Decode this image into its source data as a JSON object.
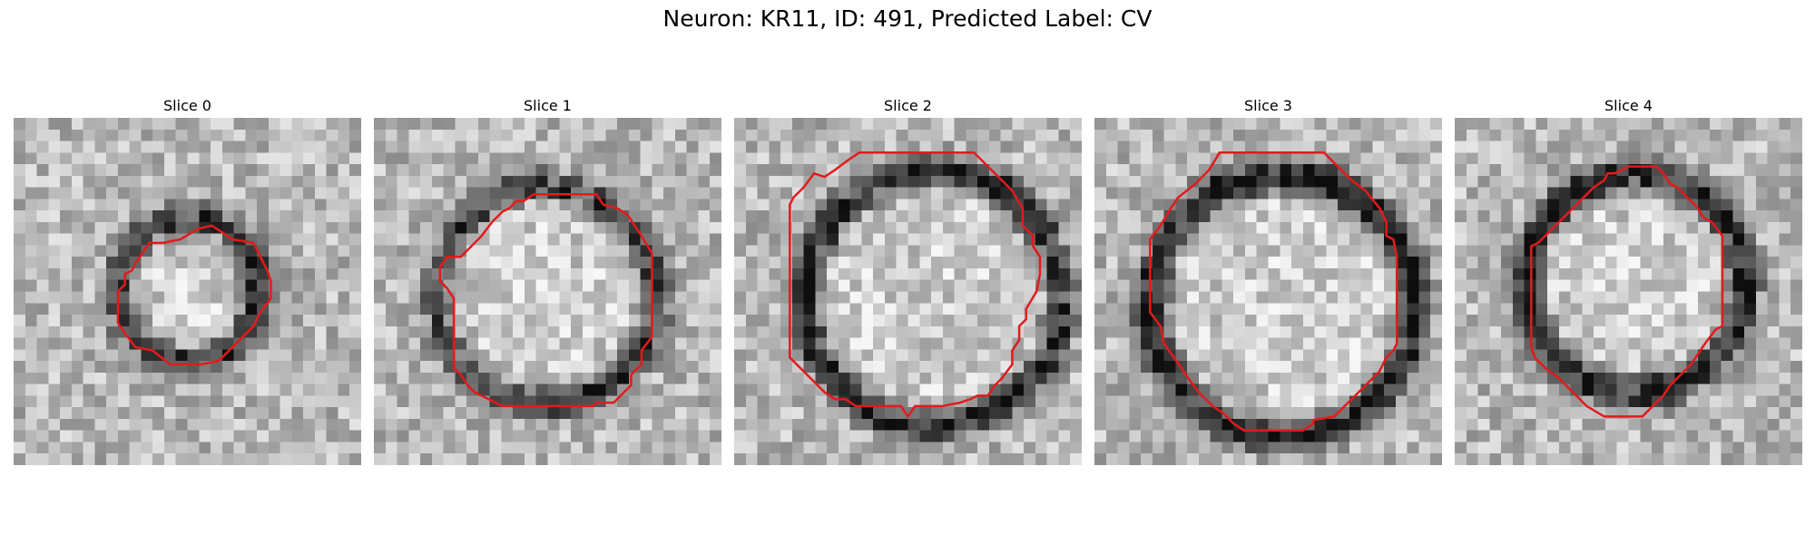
{
  "figure": {
    "title": "Neuron: KR11, ID: 491, Predicted Label: CV",
    "contour_color": "#e31a1c",
    "colormap": "grayscale",
    "panels": [
      {
        "title": "Slice 0",
        "seed": 11,
        "ring": 0.55,
        "contour": [
          [
            0.39,
            0.36
          ],
          [
            0.43,
            0.36
          ],
          [
            0.48,
            0.35
          ],
          [
            0.53,
            0.32
          ],
          [
            0.57,
            0.31
          ],
          [
            0.63,
            0.35
          ],
          [
            0.69,
            0.36
          ],
          [
            0.71,
            0.4
          ],
          [
            0.73,
            0.44
          ],
          [
            0.74,
            0.47
          ],
          [
            0.74,
            0.52
          ],
          [
            0.71,
            0.56
          ],
          [
            0.69,
            0.6
          ],
          [
            0.62,
            0.67
          ],
          [
            0.59,
            0.7
          ],
          [
            0.54,
            0.71
          ],
          [
            0.45,
            0.71
          ],
          [
            0.4,
            0.67
          ],
          [
            0.35,
            0.66
          ],
          [
            0.32,
            0.62
          ],
          [
            0.3,
            0.59
          ],
          [
            0.3,
            0.5
          ],
          [
            0.32,
            0.48
          ],
          [
            0.32,
            0.45
          ],
          [
            0.34,
            0.44
          ],
          [
            0.35,
            0.42
          ],
          [
            0.37,
            0.39
          ]
        ]
      },
      {
        "title": "Slice 1",
        "seed": 23,
        "ring": 0.5,
        "contour": [
          [
            0.28,
            0.37
          ],
          [
            0.31,
            0.34
          ],
          [
            0.34,
            0.3
          ],
          [
            0.37,
            0.27
          ],
          [
            0.39,
            0.26
          ],
          [
            0.41,
            0.24
          ],
          [
            0.43,
            0.24
          ],
          [
            0.46,
            0.22
          ],
          [
            0.64,
            0.22
          ],
          [
            0.66,
            0.25
          ],
          [
            0.7,
            0.26
          ],
          [
            0.73,
            0.28
          ],
          [
            0.75,
            0.31
          ],
          [
            0.77,
            0.34
          ],
          [
            0.8,
            0.39
          ],
          [
            0.8,
            0.45
          ],
          [
            0.8,
            0.63
          ],
          [
            0.77,
            0.67
          ],
          [
            0.77,
            0.71
          ],
          [
            0.74,
            0.74
          ],
          [
            0.74,
            0.77
          ],
          [
            0.71,
            0.8
          ],
          [
            0.69,
            0.82
          ],
          [
            0.64,
            0.82
          ],
          [
            0.63,
            0.83
          ],
          [
            0.37,
            0.83
          ],
          [
            0.33,
            0.81
          ],
          [
            0.29,
            0.79
          ],
          [
            0.27,
            0.77
          ],
          [
            0.25,
            0.74
          ],
          [
            0.23,
            0.72
          ],
          [
            0.23,
            0.52
          ],
          [
            0.21,
            0.49
          ],
          [
            0.19,
            0.47
          ],
          [
            0.19,
            0.43
          ],
          [
            0.21,
            0.4
          ],
          [
            0.25,
            0.4
          ]
        ]
      },
      {
        "title": "Slice 2",
        "seed": 37,
        "ring": 0.62,
        "contour": [
          [
            0.17,
            0.23
          ],
          [
            0.2,
            0.2
          ],
          [
            0.23,
            0.16
          ],
          [
            0.26,
            0.17
          ],
          [
            0.29,
            0.15
          ],
          [
            0.33,
            0.12
          ],
          [
            0.36,
            0.1
          ],
          [
            0.69,
            0.1
          ],
          [
            0.73,
            0.14
          ],
          [
            0.76,
            0.17
          ],
          [
            0.8,
            0.21
          ],
          [
            0.83,
            0.26
          ],
          [
            0.83,
            0.31
          ],
          [
            0.86,
            0.34
          ],
          [
            0.86,
            0.37
          ],
          [
            0.88,
            0.4
          ],
          [
            0.88,
            0.45
          ],
          [
            0.87,
            0.5
          ],
          [
            0.84,
            0.55
          ],
          [
            0.84,
            0.58
          ],
          [
            0.82,
            0.6
          ],
          [
            0.82,
            0.64
          ],
          [
            0.8,
            0.67
          ],
          [
            0.8,
            0.71
          ],
          [
            0.77,
            0.75
          ],
          [
            0.75,
            0.77
          ],
          [
            0.73,
            0.8
          ],
          [
            0.7,
            0.8
          ],
          [
            0.68,
            0.81
          ],
          [
            0.65,
            0.82
          ],
          [
            0.6,
            0.83
          ],
          [
            0.52,
            0.83
          ],
          [
            0.5,
            0.86
          ],
          [
            0.48,
            0.83
          ],
          [
            0.35,
            0.83
          ],
          [
            0.32,
            0.81
          ],
          [
            0.29,
            0.81
          ],
          [
            0.26,
            0.79
          ],
          [
            0.22,
            0.75
          ],
          [
            0.19,
            0.72
          ],
          [
            0.16,
            0.69
          ],
          [
            0.16,
            0.25
          ]
        ]
      },
      {
        "title": "Slice 3",
        "seed": 53,
        "ring": 0.72,
        "contour": [
          [
            0.24,
            0.23
          ],
          [
            0.29,
            0.19
          ],
          [
            0.33,
            0.15
          ],
          [
            0.36,
            0.1
          ],
          [
            0.66,
            0.1
          ],
          [
            0.7,
            0.14
          ],
          [
            0.74,
            0.18
          ],
          [
            0.78,
            0.21
          ],
          [
            0.82,
            0.26
          ],
          [
            0.84,
            0.3
          ],
          [
            0.84,
            0.34
          ],
          [
            0.86,
            0.35
          ],
          [
            0.87,
            0.4
          ],
          [
            0.87,
            0.65
          ],
          [
            0.86,
            0.67
          ],
          [
            0.84,
            0.69
          ],
          [
            0.82,
            0.73
          ],
          [
            0.79,
            0.76
          ],
          [
            0.76,
            0.79
          ],
          [
            0.71,
            0.84
          ],
          [
            0.69,
            0.86
          ],
          [
            0.63,
            0.87
          ],
          [
            0.63,
            0.88
          ],
          [
            0.6,
            0.9
          ],
          [
            0.43,
            0.9
          ],
          [
            0.4,
            0.88
          ],
          [
            0.37,
            0.85
          ],
          [
            0.34,
            0.83
          ],
          [
            0.3,
            0.79
          ],
          [
            0.27,
            0.75
          ],
          [
            0.25,
            0.72
          ],
          [
            0.2,
            0.65
          ],
          [
            0.19,
            0.6
          ],
          [
            0.16,
            0.56
          ],
          [
            0.16,
            0.35
          ],
          [
            0.19,
            0.31
          ],
          [
            0.22,
            0.26
          ]
        ]
      },
      {
        "title": "Slice 4",
        "seed": 71,
        "ring": 0.66,
        "contour": [
          [
            0.24,
            0.36
          ],
          [
            0.28,
            0.32
          ],
          [
            0.32,
            0.28
          ],
          [
            0.36,
            0.24
          ],
          [
            0.4,
            0.2
          ],
          [
            0.43,
            0.18
          ],
          [
            0.44,
            0.16
          ],
          [
            0.46,
            0.16
          ],
          [
            0.5,
            0.14
          ],
          [
            0.58,
            0.14
          ],
          [
            0.6,
            0.16
          ],
          [
            0.62,
            0.19
          ],
          [
            0.64,
            0.2
          ],
          [
            0.7,
            0.26
          ],
          [
            0.71,
            0.28
          ],
          [
            0.72,
            0.29
          ],
          [
            0.74,
            0.3
          ],
          [
            0.77,
            0.34
          ],
          [
            0.77,
            0.55
          ],
          [
            0.77,
            0.6
          ],
          [
            0.75,
            0.61
          ],
          [
            0.72,
            0.65
          ],
          [
            0.7,
            0.68
          ],
          [
            0.68,
            0.71
          ],
          [
            0.64,
            0.75
          ],
          [
            0.62,
            0.77
          ],
          [
            0.6,
            0.8
          ],
          [
            0.57,
            0.83
          ],
          [
            0.54,
            0.86
          ],
          [
            0.43,
            0.86
          ],
          [
            0.38,
            0.83
          ],
          [
            0.34,
            0.79
          ],
          [
            0.3,
            0.75
          ],
          [
            0.26,
            0.72
          ],
          [
            0.23,
            0.69
          ],
          [
            0.22,
            0.66
          ],
          [
            0.22,
            0.37
          ]
        ]
      }
    ]
  }
}
